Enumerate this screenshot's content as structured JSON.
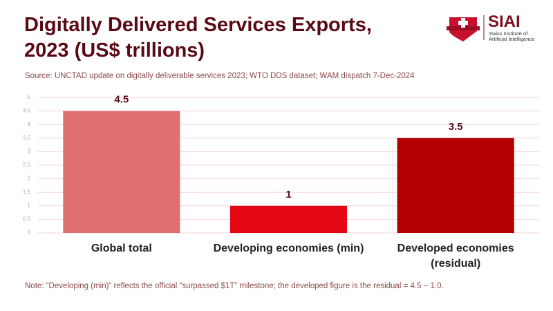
{
  "chart_data": {
    "type": "bar",
    "title": "Digitally Delivered Services Exports, 2023 (US$ trillions)",
    "source": "Source: UNCTAD update on digitally deliverable services 2023; WTO DDS dataset; WAM dispatch 7-Dec-2024",
    "note": "Note: “Developing (min)” reflects the official “surpassed $1T” milestone; the developed figure is the residual = 4.5 − 1.0.",
    "categories": [
      "Global total",
      "Developing economies (min)",
      "Developed economies (residual)"
    ],
    "values": [
      4.5,
      1,
      3.5
    ],
    "colors": [
      "#e07070",
      "#e30613",
      "#b20000"
    ],
    "ylim": [
      0,
      5
    ],
    "yticks": [
      0,
      0.5,
      1,
      1.5,
      2,
      2.5,
      3,
      3.5,
      4,
      4.5,
      5
    ],
    "grid": true
  },
  "logo": {
    "name": "SIAI",
    "subtitle": "Swiss Institute of Artificial Intelligence"
  }
}
